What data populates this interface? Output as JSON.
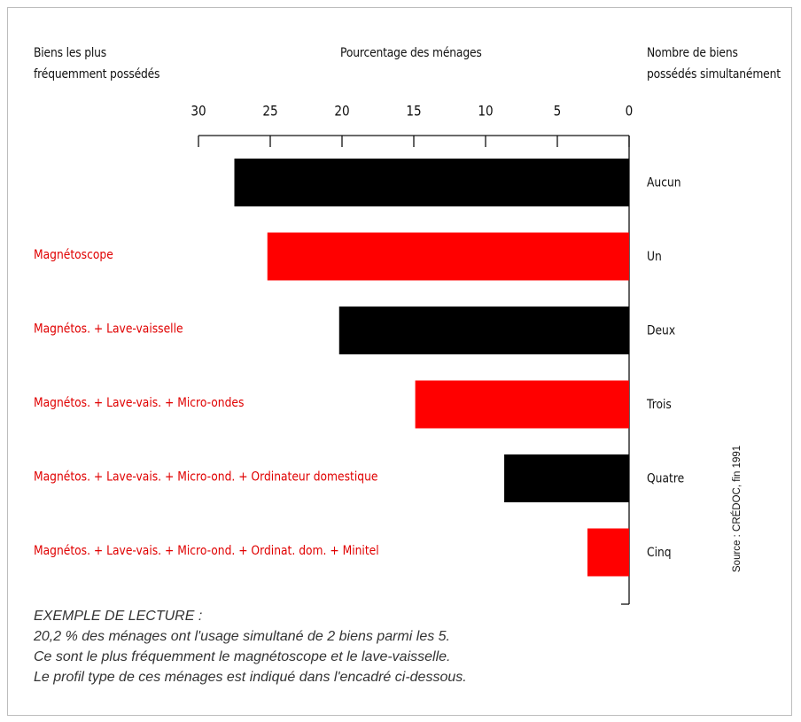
{
  "chart_data": {
    "type": "bar",
    "orientation": "horizontal",
    "xlabel": "Pourcentage des ménages",
    "xlim": [
      0,
      30
    ],
    "x_reversed": true,
    "xticks": [
      "30",
      "25",
      "20",
      "15",
      "10",
      "5",
      "0"
    ],
    "left_header": [
      "Biens les plus",
      "fréquemment possédés"
    ],
    "right_header": [
      "Nombre de biens",
      "possédés simultanément"
    ],
    "categories": [
      "Aucun",
      "Un",
      "Deux",
      "Trois",
      "Quatre",
      "Cinq"
    ],
    "left_labels": [
      "",
      "Magnétoscope",
      "Magnétos. + Lave-vaisselle",
      "Magnétos. + Lave-vais. + Micro-ondes",
      "Magnétos. + Lave-vais. + Micro-ond. + Ordinateur domestique",
      "Magnétos. + Lave-vais. + Micro-ond. + Ordinat. dom. + Minitel"
    ],
    "values": [
      27.5,
      25.2,
      20.2,
      14.9,
      8.7,
      2.9
    ],
    "bar_colors": [
      "#000000",
      "#ff0000",
      "#000000",
      "#ff0000",
      "#000000",
      "#ff0000"
    ],
    "label_color": "#e00000",
    "grid": false
  },
  "note": {
    "lines": [
      "EXEMPLE DE LECTURE :",
      "20,2 % des ménages ont l'usage simultané de 2 biens parmi les 5.",
      "Ce sont le plus fréquemment le magnétoscope et le lave-vaisselle.",
      "Le profil type de ces ménages est indiqué dans l'encadré ci-dessous."
    ]
  },
  "source": "Source : CRÉDOC, fin 1991"
}
